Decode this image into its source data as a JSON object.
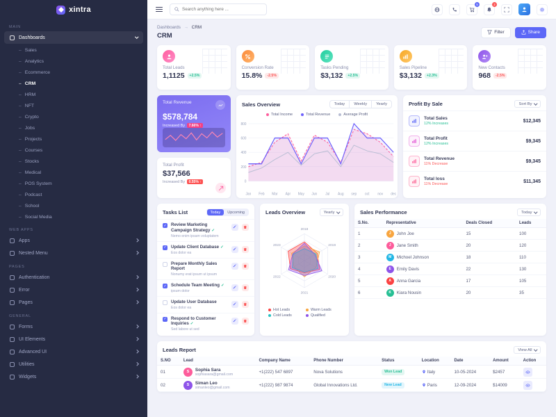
{
  "brand": {
    "name": "xintra"
  },
  "header": {
    "search_placeholder": "Search anything here ...",
    "cart_badge": "5",
    "bell_badge": "2"
  },
  "sidebar": {
    "section_main": "MAIN",
    "section_webapps": "WEB APPS",
    "section_pages": "PAGES",
    "section_general": "GENERAL",
    "dashboards": "Dashboards",
    "dash_children": [
      "Sales",
      "Analytics",
      "Ecommerce",
      "CRM",
      "HRM",
      "NFT",
      "Crypto",
      "Jobs",
      "Projects",
      "Courses",
      "Stocks",
      "Medical",
      "POS System",
      "Podcast",
      "School",
      "Social Media"
    ],
    "apps": "Apps",
    "nested_menu": "Nested Menu",
    "authentication": "Authentication",
    "error": "Error",
    "pages": "Pages",
    "forms": "Forms",
    "ui_elements": "UI Elements",
    "advanced_ui": "Advanced UI",
    "utilities": "Utilities",
    "widgets": "Widgets"
  },
  "breadcrumb": {
    "parent": "Dashboards",
    "separator": "→",
    "current": "CRM"
  },
  "page": {
    "title": "CRM",
    "filter_label": "Filter",
    "share_label": "Share"
  },
  "stats": [
    {
      "label": "Total Leads",
      "value": "1,1125",
      "change": "+2.5%",
      "dir": "up"
    },
    {
      "label": "Conversion Rate",
      "value": "15.8%",
      "change": "-2.5%",
      "dir": "down"
    },
    {
      "label": "Tasks Pending",
      "value": "$3,132",
      "change": "+2.5%",
      "dir": "up"
    },
    {
      "label": "Sales Pipeline",
      "value": "$3,132",
      "change": "+2.3%",
      "dir": "up"
    },
    {
      "label": "New Contacts",
      "value": "968",
      "change": "-2.5%",
      "dir": "down"
    }
  ],
  "revenue_card": {
    "label": "Total Revenue",
    "value": "$578,784",
    "sub": "Increased By",
    "badge": "7.66% ↑",
    "spark": [
      30,
      55,
      25,
      60,
      35,
      70,
      28,
      65,
      40,
      75,
      45,
      68
    ]
  },
  "profit_card": {
    "label": "Total Profit",
    "value": "$37,566",
    "sub": "Increased By",
    "badge": "0.55% ↑"
  },
  "sales_overview": {
    "title": "Sales Overview",
    "tabs": [
      "Today",
      "Weekly",
      "Yearly"
    ],
    "chart": {
      "type": "line",
      "x": [
        "Jan",
        "Feb",
        "Mar",
        "Apr",
        "May",
        "Jun",
        "Jul",
        "Aug",
        "sep",
        "oct",
        "nov",
        "dec"
      ],
      "ymax": 800,
      "yticks": [
        0,
        200,
        400,
        600,
        800
      ],
      "series": [
        {
          "name": "Total Income",
          "color": "#fd5c9b",
          "style": "dashed",
          "values": [
            200,
            260,
            540,
            660,
            280,
            640,
            540,
            260,
            720,
            660,
            540,
            340
          ]
        },
        {
          "name": "Total Revenue",
          "color": "#6c5ffc",
          "style": "solid",
          "values": [
            240,
            240,
            600,
            600,
            240,
            600,
            600,
            240,
            800,
            600,
            600,
            400
          ]
        },
        {
          "name": "Average Profit",
          "color": "#b7bdd3",
          "style": "solid",
          "values": [
            120,
            180,
            300,
            400,
            220,
            380,
            420,
            200,
            500,
            420,
            380,
            260
          ]
        }
      ]
    }
  },
  "profit_by_sale": {
    "title": "Profit By Sale",
    "sort_label": "Sort By",
    "items": [
      {
        "name": "Total Sales",
        "change": "12% Increases",
        "value": "$12,345",
        "dir": "up",
        "color": "#5c67f7"
      },
      {
        "name": "Total Profit",
        "change": "12% Increases",
        "value": "$9,345",
        "dir": "up",
        "color": "#e354d4"
      },
      {
        "name": "Total Revenue",
        "change": "11% Decrease",
        "value": "$9,345",
        "dir": "down",
        "color": "#fd5c9b"
      },
      {
        "name": "Total loss",
        "change": "11% Decrease",
        "value": "$11,345",
        "dir": "down",
        "color": "#fb5c8e"
      }
    ]
  },
  "tasks": {
    "title": "Tasks List",
    "tabs": [
      "Today",
      "Upcoming"
    ],
    "items": [
      {
        "title": "Review Marketing Campaign Strategy",
        "sub": "Nemo enim ipsam voluptatem",
        "checked": true,
        "flag": true
      },
      {
        "title": "Update Client Database",
        "sub": "Eos dolor ea",
        "checked": true,
        "flag": true
      },
      {
        "title": "Prepare Monthly Sales Report",
        "sub": "Nonumy erat ipsum ut ipsum",
        "checked": false,
        "flag": false
      },
      {
        "title": "Schedule Team Meeting",
        "sub": "ipsum dolor",
        "checked": true,
        "flag": true
      },
      {
        "title": "Update User Database",
        "sub": "Eos dolor ea",
        "checked": false,
        "flag": false
      },
      {
        "title": "Respond to Customer Inquiries",
        "sub": "Sed labore ut sed",
        "checked": true,
        "flag": true
      }
    ]
  },
  "leads_overview": {
    "title": "Leads Overview",
    "range": "Yearly",
    "type": "radar",
    "axes": [
      "2018",
      "2019",
      "2020",
      "2021",
      "2022",
      "2023"
    ],
    "series": [
      {
        "name": "Hot Leads",
        "color": "#fb4242",
        "values": [
          70,
          55,
          65,
          45,
          60,
          70
        ]
      },
      {
        "name": "Warm Leads",
        "color": "#f8a53f",
        "values": [
          55,
          65,
          50,
          60,
          45,
          55
        ]
      },
      {
        "name": "Cold Leads",
        "color": "#29c2c2",
        "values": [
          45,
          50,
          58,
          42,
          52,
          48
        ]
      },
      {
        "name": "Qualified",
        "color": "#8e54e9",
        "values": [
          65,
          45,
          75,
          55,
          68,
          50
        ]
      }
    ]
  },
  "sales_performance": {
    "title": "Sales Performance",
    "range": "Today",
    "headers": [
      "S.No.",
      "Representative",
      "Deals Closed",
      "Leads"
    ],
    "rows": [
      {
        "no": "1",
        "name": "John Joe",
        "initial": "J",
        "deals": "15",
        "leads": "100",
        "avatar_color": "#f8a53f"
      },
      {
        "no": "2",
        "name": "Jane Smith",
        "initial": "J",
        "deals": "20",
        "leads": "120",
        "avatar_color": "#fd5c9b"
      },
      {
        "no": "3",
        "name": "Michoel Johnson",
        "initial": "M",
        "deals": "18",
        "leads": "110",
        "avatar_color": "#23b7e5"
      },
      {
        "no": "4",
        "name": "Emily Davis",
        "initial": "E",
        "deals": "22",
        "leads": "130",
        "avatar_color": "#8e54e9"
      },
      {
        "no": "5",
        "name": "Anna Garcia",
        "initial": "A",
        "deals": "17",
        "leads": "105",
        "avatar_color": "#fb4242"
      },
      {
        "no": "6",
        "name": "Kiara Nousin",
        "initial": "K",
        "deals": "20",
        "leads": "35",
        "avatar_color": "#26bf94"
      }
    ]
  },
  "leads_report": {
    "title": "Leads Report",
    "view_all": "View All",
    "headers": [
      "S.NO",
      "Lead",
      "Company Name",
      "Phone Number",
      "Status",
      "Location",
      "Date",
      "Amount",
      "Action"
    ],
    "rows": [
      {
        "no": "01",
        "name": "Sophia Sara",
        "email": "sophiasara@gmail.com",
        "initial": "S",
        "phone": "+1(222) 547 6897",
        "company": "Nova Solutions",
        "status": "Won Lead",
        "status_color": "#26bf94",
        "location": "Italy",
        "date": "10-05-2024",
        "amount": "$2457",
        "avatar_color": "#fd5c9b"
      },
      {
        "no": "02",
        "name": "Siman Leo",
        "email": "simanleo@gmail.com",
        "initial": "S",
        "phone": "+1(222) 987 9874",
        "company": "Global Innovations Ltd.",
        "status": "New Lead",
        "status_color": "#23b7e5",
        "location": "Paris",
        "date": "12-09-2024",
        "amount": "$14009",
        "avatar_color": "#8e54e9"
      }
    ]
  }
}
